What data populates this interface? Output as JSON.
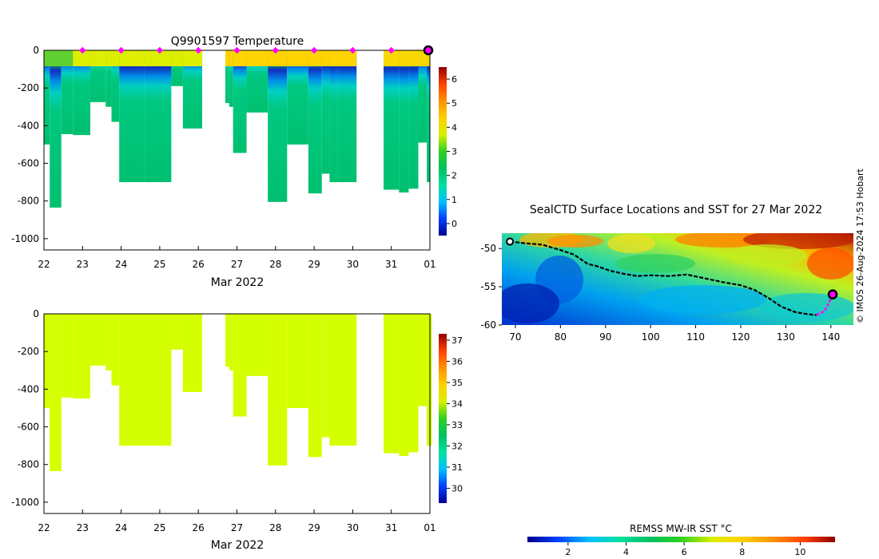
{
  "credit": "© IMOS 26-Aug-2024 17:53 Hobart",
  "chart_data": [
    {
      "type": "heatmap",
      "name": "temperature-profile",
      "title": "Q9901597  Temperature",
      "xlabel": "Mar 2022",
      "x_ticks": [
        "22",
        "23",
        "24",
        "25",
        "26",
        "27",
        "28",
        "29",
        "30",
        "31",
        "01"
      ],
      "xlim_days": [
        22,
        32
      ],
      "ylim": [
        -1060,
        0
      ],
      "y_ticks": [
        0,
        -200,
        -400,
        -600,
        -800,
        -1000
      ],
      "y_tick_labels": [
        "0",
        "-200",
        "-400",
        "-600",
        "-800",
        "-1000"
      ],
      "colorbar_ticks": [
        "0",
        "1",
        "2",
        "3",
        "4",
        "5",
        "6"
      ],
      "colorbar_range": [
        -0.5,
        6.5
      ],
      "colorbar_colors": [
        "#00008f",
        "#0040ff",
        "#00c0ff",
        "#00e0a0",
        "#00c060",
        "#30d020",
        "#d8f000",
        "#ffd000",
        "#ff9000",
        "#ff4000",
        "#900000"
      ],
      "surface_markers_day": [
        23.0,
        24.0,
        25.0,
        26.0,
        27.0,
        28.0,
        29.0,
        30.0,
        31.0
      ],
      "current_marker_day": 32.0,
      "profiles": [
        {
          "t0": 22.0,
          "t1": 22.15,
          "depth": 500
        },
        {
          "t0": 22.15,
          "t1": 22.45,
          "depth": 835
        },
        {
          "t0": 22.45,
          "t1": 22.75,
          "depth": 445
        },
        {
          "t0": 22.75,
          "t1": 23.2,
          "depth": 450
        },
        {
          "t0": 23.2,
          "t1": 23.6,
          "depth": 275
        },
        {
          "t0": 23.6,
          "t1": 23.75,
          "depth": 300
        },
        {
          "t0": 23.75,
          "t1": 23.95,
          "depth": 380
        },
        {
          "t0": 23.95,
          "t1": 24.6,
          "depth": 700
        },
        {
          "t0": 24.6,
          "t1": 25.3,
          "depth": 700
        },
        {
          "t0": 25.3,
          "t1": 25.6,
          "depth": 190
        },
        {
          "t0": 25.6,
          "t1": 26.1,
          "depth": 415
        },
        {
          "t0": 26.7,
          "t1": 26.8,
          "depth": 280
        },
        {
          "t0": 26.8,
          "t1": 26.9,
          "depth": 300
        },
        {
          "t0": 26.9,
          "t1": 27.25,
          "depth": 545
        },
        {
          "t0": 27.25,
          "t1": 27.8,
          "depth": 330
        },
        {
          "t0": 27.8,
          "t1": 28.3,
          "depth": 805
        },
        {
          "t0": 28.3,
          "t1": 28.85,
          "depth": 500
        },
        {
          "t0": 28.85,
          "t1": 29.2,
          "depth": 760
        },
        {
          "t0": 29.2,
          "t1": 29.4,
          "depth": 655
        },
        {
          "t0": 29.4,
          "t1": 29.6,
          "depth": 700
        },
        {
          "t0": 29.6,
          "t1": 30.1,
          "depth": 700
        },
        {
          "t0": 30.8,
          "t1": 31.2,
          "depth": 740
        },
        {
          "t0": 31.2,
          "t1": 31.45,
          "depth": 755
        },
        {
          "t0": 31.45,
          "t1": 31.7,
          "depth": 735
        },
        {
          "t0": 31.7,
          "t1": 31.92,
          "depth": 490
        },
        {
          "t0": 31.92,
          "t1": 32.05,
          "depth": 700
        }
      ]
    },
    {
      "type": "heatmap",
      "name": "salinity-profile",
      "title": "",
      "xlabel": "Mar 2022",
      "x_ticks": [
        "22",
        "23",
        "24",
        "25",
        "26",
        "27",
        "28",
        "29",
        "30",
        "31",
        "01"
      ],
      "xlim_days": [
        22,
        32
      ],
      "ylim": [
        -1060,
        0
      ],
      "y_ticks": [
        0,
        -200,
        -400,
        -600,
        -800,
        -1000
      ],
      "y_tick_labels": [
        "0",
        "-200",
        "-400",
        "-600",
        "-800",
        "-1000"
      ],
      "colorbar_ticks": [
        "30",
        "31",
        "32",
        "33",
        "34",
        "35",
        "36",
        "37"
      ],
      "colorbar_range": [
        29.3,
        37.3
      ],
      "colorbar_colors": [
        "#00008f",
        "#0040ff",
        "#00c0ff",
        "#00e0a0",
        "#00c060",
        "#30d020",
        "#d8f000",
        "#ffd000",
        "#ff9000",
        "#ff4000",
        "#900000"
      ],
      "fill_color": "#d4ff00"
    },
    {
      "type": "heatmap",
      "name": "sst-map",
      "title": "SealCTD Surface Locations and SST for 27 Mar 2022",
      "xlim": [
        67,
        145
      ],
      "ylim": [
        -60,
        -48
      ],
      "x_ticks": [
        "70",
        "80",
        "90",
        "100",
        "110",
        "120",
        "130",
        "140"
      ],
      "y_ticks": [
        "-50",
        "-55",
        "-60"
      ],
      "track": [
        [
          68.8,
          -49.1
        ],
        [
          72,
          -49.3
        ],
        [
          76,
          -49.5
        ],
        [
          80,
          -50.2
        ],
        [
          83,
          -50.8
        ],
        [
          86,
          -52
        ],
        [
          88,
          -52.3
        ],
        [
          91,
          -52.9
        ],
        [
          94,
          -53.3
        ],
        [
          97,
          -53.6
        ],
        [
          100,
          -53.5
        ],
        [
          104,
          -53.6
        ],
        [
          108,
          -53.4
        ],
        [
          112,
          -53.9
        ],
        [
          116,
          -54.4
        ],
        [
          120,
          -54.8
        ],
        [
          123,
          -55.4
        ],
        [
          126,
          -56.4
        ],
        [
          129,
          -57.6
        ],
        [
          132,
          -58.3
        ],
        [
          135,
          -58.6
        ],
        [
          136.8,
          -58.7
        ]
      ],
      "recent_track": [
        [
          136.8,
          -58.7
        ],
        [
          138.5,
          -58.2
        ],
        [
          139.5,
          -57.2
        ],
        [
          140.4,
          -56.0
        ]
      ],
      "current_position": [
        140.4,
        -56.0
      ],
      "colorbar_label": "REMSS MW-IR SST °C",
      "colorbar_ticks": [
        "2",
        "4",
        "6",
        "8",
        "10"
      ],
      "colorbar_range": [
        0.6,
        11.2
      ],
      "colorbar_colors": [
        "#00008f",
        "#0040ff",
        "#00c0ff",
        "#00e0a0",
        "#00c060",
        "#30d020",
        "#d8f000",
        "#ffd000",
        "#ff9000",
        "#ff4000",
        "#900000"
      ]
    }
  ]
}
